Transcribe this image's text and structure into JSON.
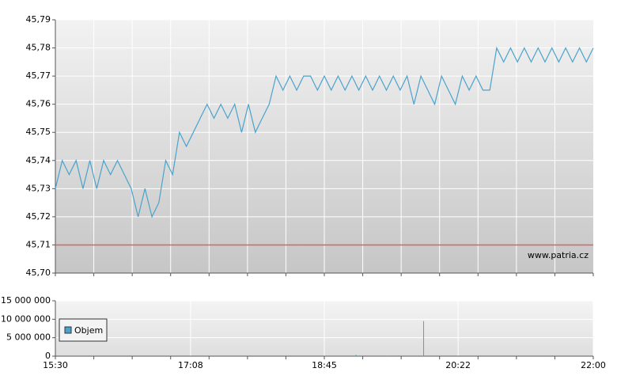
{
  "chart_data": [
    {
      "type": "line",
      "x": [
        "15:30",
        "15:35",
        "15:40",
        "15:45",
        "15:50",
        "15:55",
        "16:00",
        "16:05",
        "16:10",
        "16:15",
        "16:20",
        "16:25",
        "16:30",
        "16:35",
        "16:40",
        "16:45",
        "16:50",
        "16:55",
        "17:00",
        "17:05",
        "17:10",
        "17:15",
        "17:20",
        "17:25",
        "17:30",
        "17:35",
        "17:40",
        "17:45",
        "17:50",
        "17:55",
        "18:00",
        "18:05",
        "18:10",
        "18:15",
        "18:20",
        "18:25",
        "18:30",
        "18:35",
        "18:40",
        "18:45",
        "18:50",
        "18:55",
        "19:00",
        "19:05",
        "19:10",
        "19:15",
        "19:20",
        "19:25",
        "19:30",
        "19:35",
        "19:40",
        "19:45",
        "19:50",
        "19:55",
        "20:00",
        "20:05",
        "20:10",
        "20:15",
        "20:20",
        "20:25",
        "20:30",
        "20:35",
        "20:40",
        "20:45",
        "20:50",
        "20:55",
        "21:00",
        "21:05",
        "21:10",
        "21:15",
        "21:20",
        "21:25",
        "21:30",
        "21:35",
        "21:40",
        "21:45",
        "21:50",
        "21:55",
        "22:00"
      ],
      "values": [
        45.73,
        45.74,
        45.735,
        45.74,
        45.73,
        45.74,
        45.73,
        45.74,
        45.735,
        45.74,
        45.735,
        45.73,
        45.72,
        45.73,
        45.72,
        45.725,
        45.74,
        45.735,
        45.75,
        45.745,
        45.75,
        45.755,
        45.76,
        45.755,
        45.76,
        45.755,
        45.76,
        45.75,
        45.76,
        45.75,
        45.755,
        45.76,
        45.77,
        45.765,
        45.77,
        45.765,
        45.77,
        45.77,
        45.765,
        45.77,
        45.765,
        45.77,
        45.765,
        45.77,
        45.765,
        45.77,
        45.765,
        45.77,
        45.765,
        45.77,
        45.765,
        45.77,
        45.76,
        45.77,
        45.765,
        45.76,
        45.77,
        45.765,
        45.76,
        45.77,
        45.765,
        45.77,
        45.765,
        45.765,
        45.78,
        45.775,
        45.78,
        45.775,
        45.78,
        45.775,
        45.78,
        45.775,
        45.78,
        45.775,
        45.78,
        45.775,
        45.78,
        45.775,
        45.78
      ],
      "color": "#4aa3cc",
      "xlim": [
        "15:30",
        "22:00"
      ],
      "ylim": [
        45.7,
        45.79
      ],
      "yticks": [
        {
          "value": 45.7,
          "label": "45,70"
        },
        {
          "value": 45.71,
          "label": "45,71"
        },
        {
          "value": 45.72,
          "label": "45,72"
        },
        {
          "value": 45.73,
          "label": "45,73"
        },
        {
          "value": 45.74,
          "label": "45,74"
        },
        {
          "value": 45.75,
          "label": "45,75"
        },
        {
          "value": 45.76,
          "label": "45,76"
        },
        {
          "value": 45.77,
          "label": "45,77"
        },
        {
          "value": 45.78,
          "label": "45,78"
        },
        {
          "value": 45.79,
          "label": "45,79"
        }
      ],
      "reference_line": {
        "value": 45.71,
        "color": "#e06060"
      },
      "watermark": "www.patria.cz",
      "grid": true
    },
    {
      "type": "bar",
      "x": [
        "19:08",
        "19:30",
        "19:57",
        "21:20"
      ],
      "series": [
        {
          "name": "Objem",
          "color": "#4aa3cc",
          "values": [
            400000,
            150000,
            9500000,
            150000
          ]
        }
      ],
      "xlim": [
        "15:30",
        "22:00"
      ],
      "xticks": [
        "15:30",
        "17:08",
        "18:45",
        "20:22",
        "22:00"
      ],
      "ylim": [
        0,
        15000000
      ],
      "yticks": [
        0,
        {
          "value": 5000000,
          "label": "5 000 000"
        },
        {
          "value": 10000000,
          "label": "10 000 000"
        },
        {
          "value": 15000000,
          "label": "15 000 000"
        }
      ],
      "legend": "upper left",
      "grid": true
    }
  ]
}
